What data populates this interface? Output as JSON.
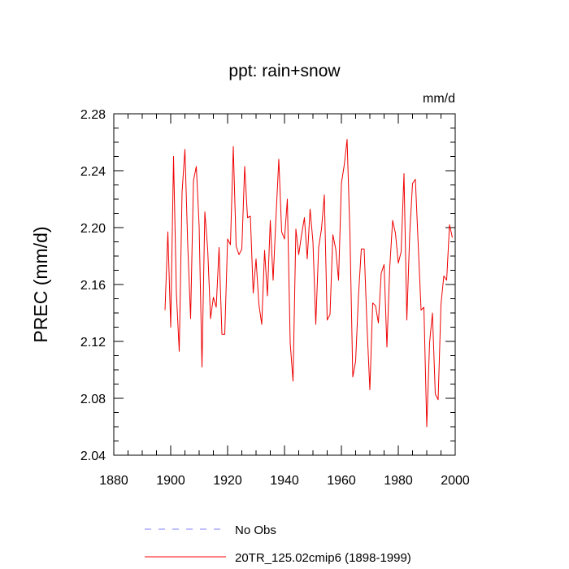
{
  "chart_data": {
    "type": "line",
    "title": "ppt: rain+snow",
    "units_label": "mm/d",
    "xlabel": "",
    "ylabel": "PREC  (mm/d)",
    "xlim": [
      1880,
      2000
    ],
    "ylim": [
      2.04,
      2.28
    ],
    "x_ticks": [
      "1880",
      "1900",
      "1920",
      "1940",
      "1960",
      "1980",
      "2000"
    ],
    "y_ticks": [
      "2.04",
      "2.08",
      "2.12",
      "2.16",
      "2.20",
      "2.24",
      "2.28"
    ],
    "x_tick_values": [
      1880,
      1900,
      1920,
      1940,
      1960,
      1980,
      2000
    ],
    "y_tick_values": [
      2.04,
      2.08,
      2.12,
      2.16,
      2.2,
      2.24,
      2.28
    ],
    "legend": [
      {
        "label": "No Obs",
        "color": "#8080ff",
        "style": "dashed"
      },
      {
        "label": "20TR_125.02cmip6 (1898-1999)",
        "color": "#ff0000",
        "style": "solid"
      }
    ],
    "series": [
      {
        "name": "20TR_125.02cmip6 (1898-1999)",
        "color": "#ee0000",
        "x": [
          1898,
          1899,
          1900,
          1901,
          1902,
          1903,
          1904,
          1905,
          1906,
          1907,
          1908,
          1909,
          1910,
          1911,
          1912,
          1913,
          1914,
          1915,
          1916,
          1917,
          1918,
          1919,
          1920,
          1921,
          1922,
          1923,
          1924,
          1925,
          1926,
          1927,
          1928,
          1929,
          1930,
          1931,
          1932,
          1933,
          1934,
          1935,
          1936,
          1937,
          1938,
          1939,
          1940,
          1941,
          1942,
          1943,
          1944,
          1945,
          1946,
          1947,
          1948,
          1949,
          1950,
          1951,
          1952,
          1953,
          1954,
          1955,
          1956,
          1957,
          1958,
          1959,
          1960,
          1961,
          1962,
          1963,
          1964,
          1965,
          1966,
          1967,
          1968,
          1969,
          1970,
          1971,
          1972,
          1973,
          1974,
          1975,
          1976,
          1977,
          1978,
          1979,
          1980,
          1981,
          1982,
          1983,
          1984,
          1985,
          1986,
          1987,
          1988,
          1989,
          1990,
          1991,
          1992,
          1993,
          1994,
          1995,
          1996,
          1997,
          1998,
          1999
        ],
        "values": [
          2.142,
          2.197,
          2.13,
          2.25,
          2.154,
          2.113,
          2.225,
          2.255,
          2.187,
          2.136,
          2.233,
          2.243,
          2.201,
          2.102,
          2.211,
          2.185,
          2.136,
          2.151,
          2.144,
          2.186,
          2.125,
          2.125,
          2.192,
          2.188,
          2.257,
          2.187,
          2.181,
          2.185,
          2.243,
          2.207,
          2.208,
          2.154,
          2.178,
          2.146,
          2.132,
          2.184,
          2.152,
          2.205,
          2.163,
          2.207,
          2.248,
          2.197,
          2.192,
          2.22,
          2.119,
          2.092,
          2.199,
          2.181,
          2.195,
          2.207,
          2.178,
          2.213,
          2.19,
          2.132,
          2.186,
          2.199,
          2.223,
          2.135,
          2.139,
          2.195,
          2.185,
          2.163,
          2.231,
          2.244,
          2.262,
          2.196,
          2.095,
          2.106,
          2.152,
          2.185,
          2.185,
          2.131,
          2.086,
          2.147,
          2.145,
          2.133,
          2.168,
          2.174,
          2.116,
          2.172,
          2.205,
          2.196,
          2.175,
          2.183,
          2.238,
          2.135,
          2.195,
          2.231,
          2.234,
          2.188,
          2.142,
          2.144,
          2.06,
          2.119,
          2.14,
          2.083,
          2.079,
          2.146,
          2.166,
          2.163,
          2.202,
          2.193
        ]
      }
    ]
  }
}
